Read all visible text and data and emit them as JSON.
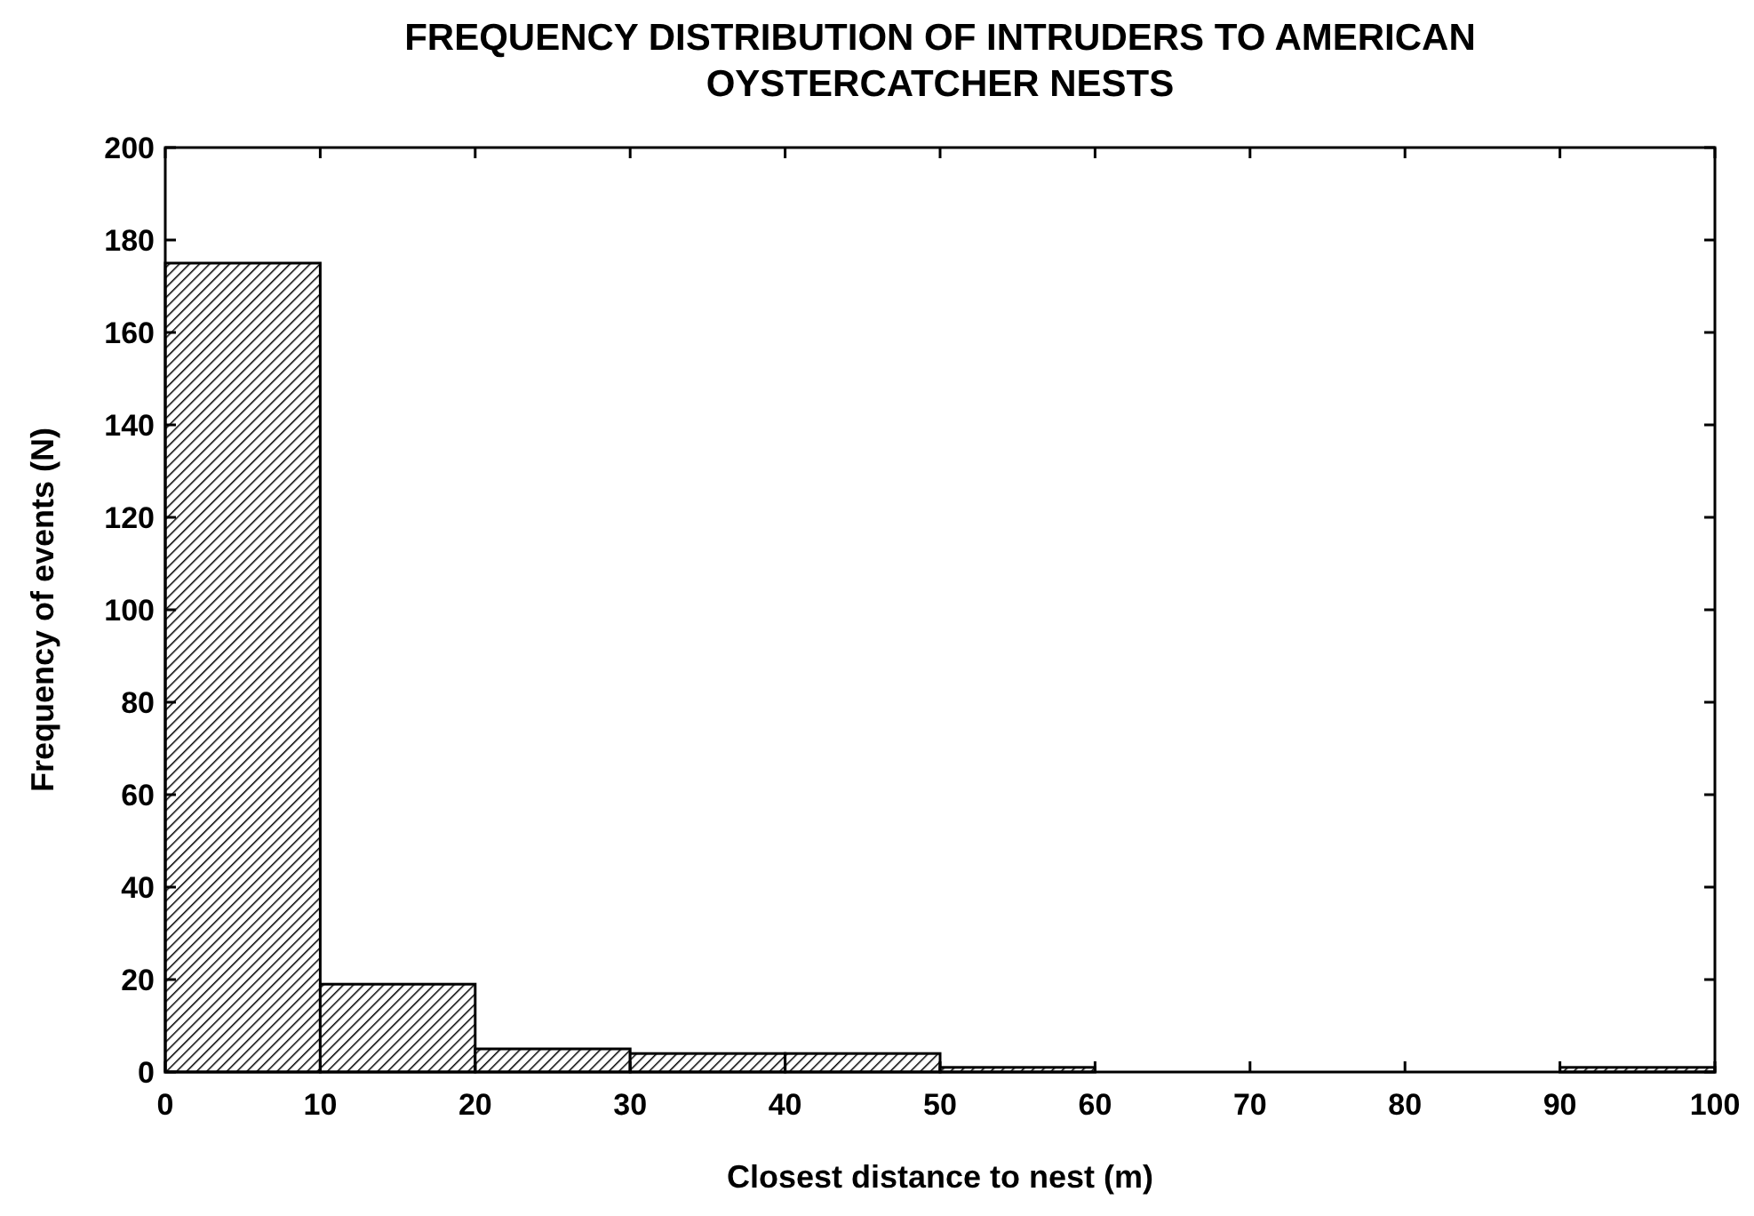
{
  "chart_data": {
    "type": "histogram",
    "title": "FREQUENCY DISTRIBUTION OF INTRUDERS TO AMERICAN OYSTERCATCHER NESTS",
    "xlabel": "Closest distance to nest (m)",
    "ylabel": "Frequency of events (N)",
    "bins": [
      0,
      10,
      20,
      30,
      40,
      50,
      60,
      70,
      80,
      90,
      100
    ],
    "values": [
      175,
      19,
      5,
      4,
      4,
      1,
      null,
      null,
      null,
      1
    ],
    "color": "#000000",
    "xlim": [
      0,
      100
    ],
    "xticks": [
      0,
      10,
      20,
      30,
      40,
      50,
      60,
      70,
      80,
      90,
      100
    ],
    "ylim": [
      0,
      200
    ],
    "yticks": [
      0,
      20,
      40,
      60,
      80,
      100,
      120,
      140,
      160,
      180,
      200
    ],
    "grid": false
  }
}
